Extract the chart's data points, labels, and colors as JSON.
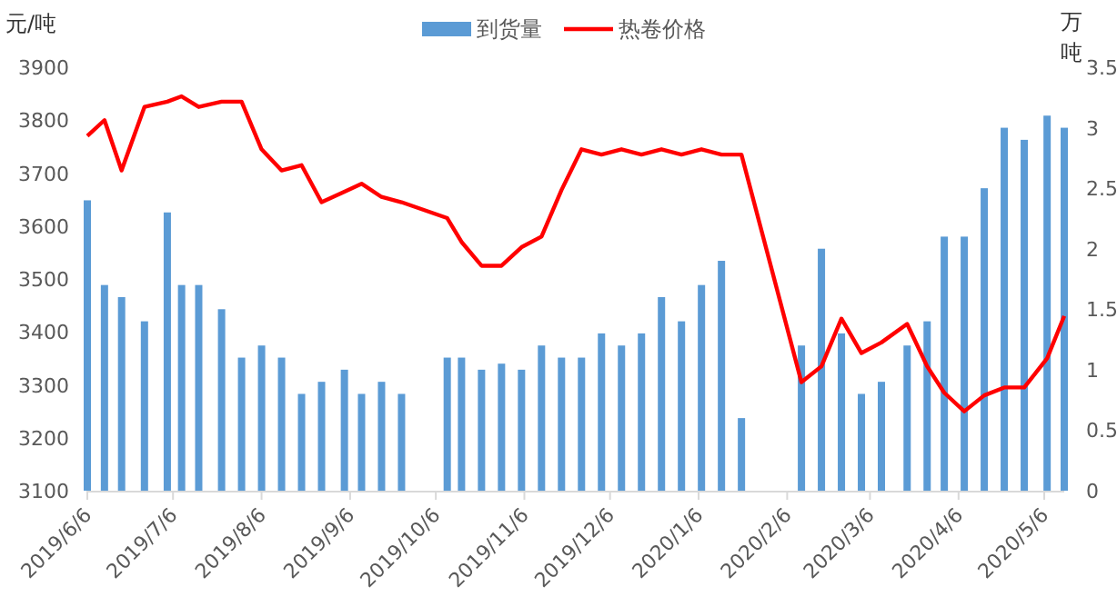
{
  "chart_data": {
    "type": "bar",
    "ylabel": "元/吨",
    "y2label": "万吨",
    "legend": "top",
    "x": [
      "2019-06-06",
      "2019-06-12",
      "2019-06-18",
      "2019-06-26",
      "2019-07-04",
      "2019-07-09",
      "2019-07-15",
      "2019-07-23",
      "2019-07-30",
      "2019-08-06",
      "2019-08-13",
      "2019-08-20",
      "2019-08-27",
      "2019-09-04",
      "2019-09-10",
      "2019-09-17",
      "2019-09-24",
      "2019-10-10",
      "2019-10-15",
      "2019-10-22",
      "2019-10-29",
      "2019-11-05",
      "2019-11-12",
      "2019-11-19",
      "2019-11-26",
      "2019-12-03",
      "2019-12-10",
      "2019-12-17",
      "2019-12-24",
      "2019-12-31",
      "2020-01-07",
      "2020-01-14",
      "2020-01-21",
      "2020-02-11",
      "2020-02-18",
      "2020-02-25",
      "2020-03-03",
      "2020-03-10",
      "2020-03-19",
      "2020-03-26",
      "2020-04-01",
      "2020-04-08",
      "2020-04-15",
      "2020-04-22",
      "2020-04-29",
      "2020-05-07",
      "2020-05-13"
    ],
    "series": [
      {
        "name": "到货量",
        "axis": "y2",
        "color": "#5b9bd5",
        "values": [
          2.4,
          1.7,
          1.6,
          1.4,
          2.3,
          1.7,
          1.7,
          1.5,
          1.1,
          1.2,
          1.1,
          0.8,
          0.9,
          1.0,
          0.8,
          0.9,
          0.8,
          1.1,
          1.1,
          1.0,
          1.05,
          1.0,
          1.2,
          1.1,
          1.1,
          1.3,
          1.2,
          1.3,
          1.6,
          1.4,
          1.7,
          1.9,
          0.6,
          1.2,
          2.0,
          1.3,
          0.8,
          0.9,
          1.2,
          1.4,
          2.1,
          2.1,
          2.5,
          3.0,
          2.9,
          3.1,
          3.0
        ]
      },
      {
        "name": "热卷价格",
        "type": "line",
        "color": "#ff0000",
        "values": [
          3770,
          3800,
          3705,
          3825,
          3835,
          3845,
          3825,
          3835,
          3835,
          3745,
          3705,
          3715,
          3645,
          3665,
          3680,
          3655,
          3645,
          3615,
          3570,
          3525,
          3525,
          3560,
          3580,
          3668,
          3745,
          3735,
          3745,
          3735,
          3745,
          3735,
          3745,
          3735,
          3735,
          3305,
          3335,
          3425,
          3360,
          3380,
          3415,
          3335,
          3285,
          3250,
          3280,
          3295,
          3295,
          3350,
          3430
        ]
      }
    ],
    "xlim": [
      "2019-06-06",
      "2020-05-13"
    ],
    "xticks": [
      {
        "value": "2019-06-06",
        "label": "2019/6/6"
      },
      {
        "value": "2019-07-06",
        "label": "2019/7/6"
      },
      {
        "value": "2019-08-06",
        "label": "2019/8/6"
      },
      {
        "value": "2019-09-06",
        "label": "2019/9/6"
      },
      {
        "value": "2019-10-06",
        "label": "2019/10/6"
      },
      {
        "value": "2019-11-06",
        "label": "2019/11/6"
      },
      {
        "value": "2019-12-06",
        "label": "2019/12/6"
      },
      {
        "value": "2020-01-06",
        "label": "2020/1/6"
      },
      {
        "value": "2020-02-06",
        "label": "2020/2/6"
      },
      {
        "value": "2020-03-06",
        "label": "2020/3/6"
      },
      {
        "value": "2020-04-06",
        "label": "2020/4/6"
      },
      {
        "value": "2020-05-06",
        "label": "2020/5/6"
      }
    ],
    "ylim": [
      3100,
      3900
    ],
    "yticks": [
      3100,
      3200,
      3300,
      3400,
      3500,
      3600,
      3700,
      3800,
      3900
    ],
    "y2lim": [
      0,
      3.5
    ],
    "y2ticks": [
      0,
      0.5,
      1,
      1.5,
      2,
      2.5,
      3,
      3.5
    ],
    "grid": false
  }
}
